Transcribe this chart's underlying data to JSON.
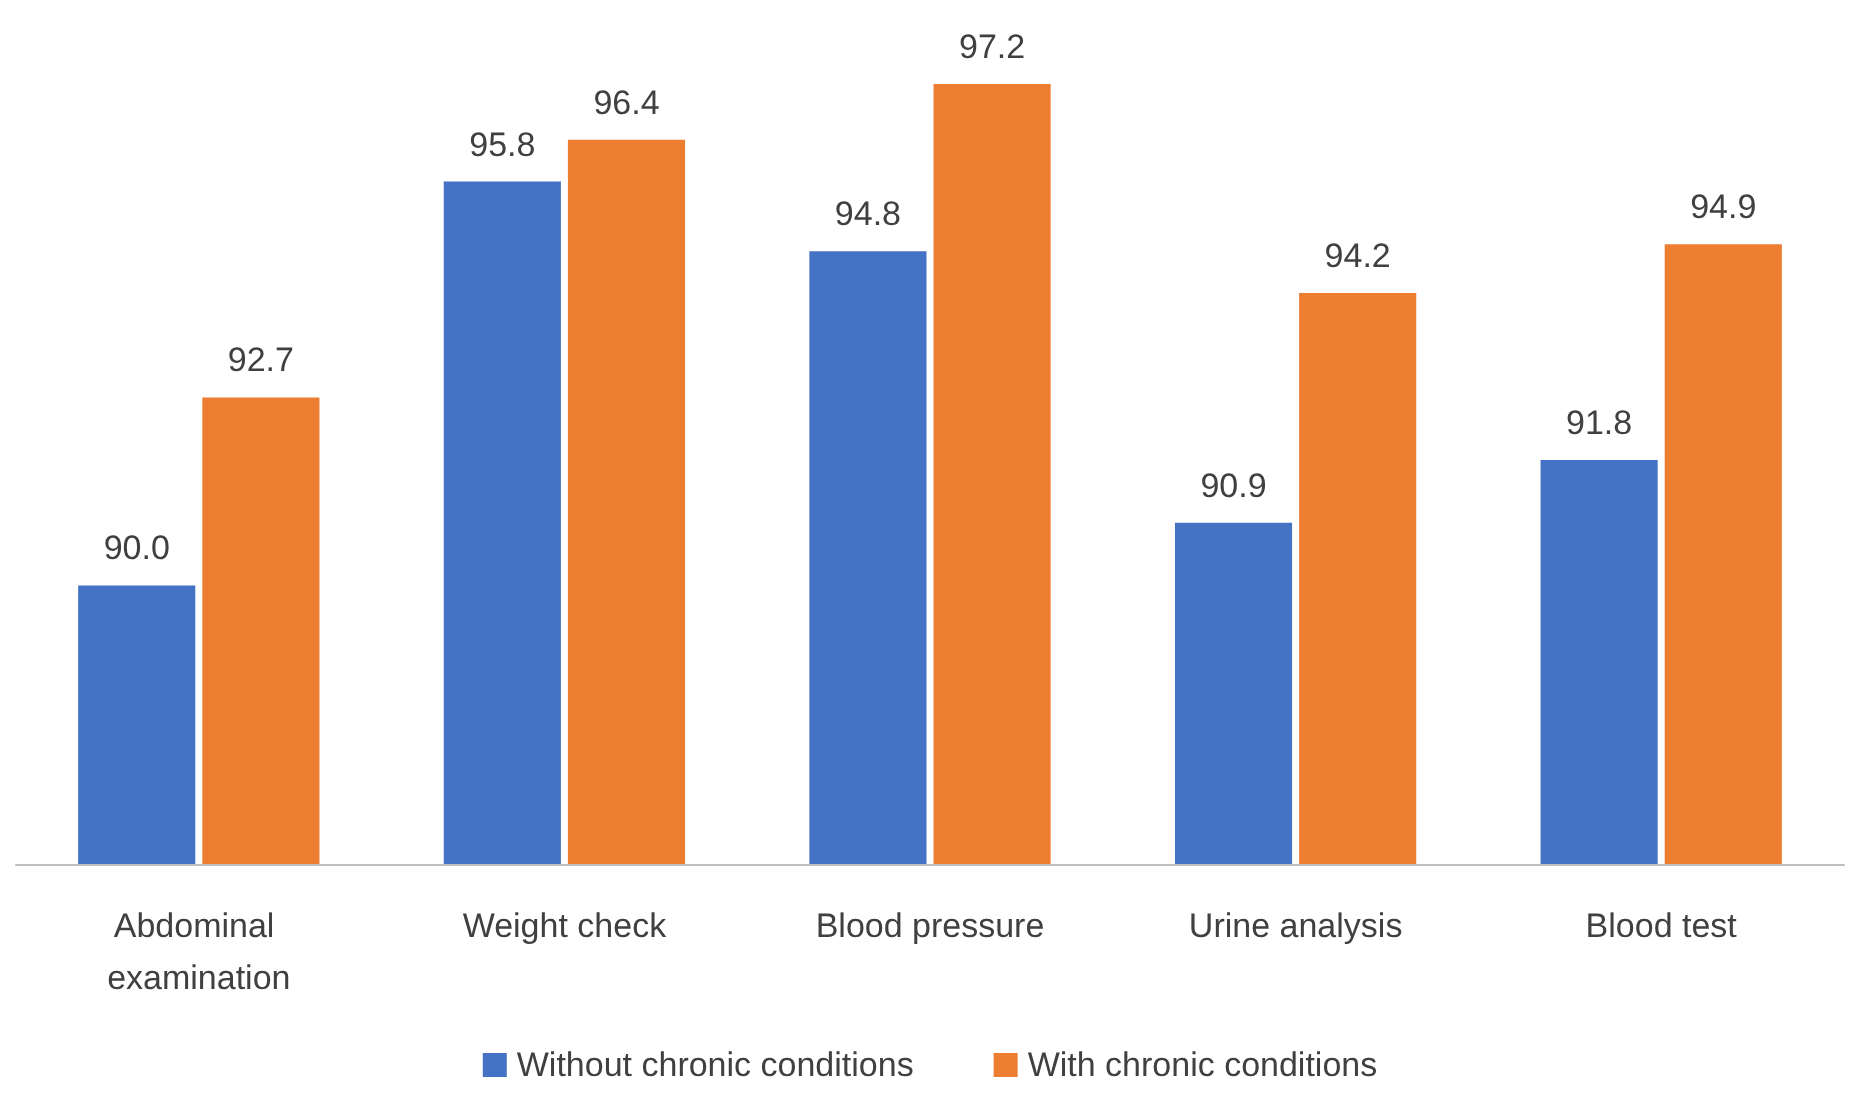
{
  "chart_data": {
    "type": "bar",
    "categories": [
      "Abdominal examination",
      "Weight check",
      "Blood pressure",
      "Urine analysis",
      "Blood test"
    ],
    "series": [
      {
        "name": "Without chronic conditions",
        "color": "#4472c4",
        "values": [
          90.0,
          95.8,
          94.8,
          90.9,
          91.8
        ],
        "value_labels": [
          "90.0",
          "95.8",
          "94.8",
          "90.9",
          "91.8"
        ]
      },
      {
        "name": "With chronic conditions",
        "color": "#ed7d31",
        "values": [
          92.7,
          96.4,
          97.2,
          94.2,
          94.9
        ],
        "value_labels": [
          "92.7",
          "96.4",
          "97.2",
          "94.2",
          "94.9"
        ]
      }
    ],
    "ylim": [
      86,
      97.2
    ],
    "tick_labels": "x",
    "legend": "bottom"
  }
}
